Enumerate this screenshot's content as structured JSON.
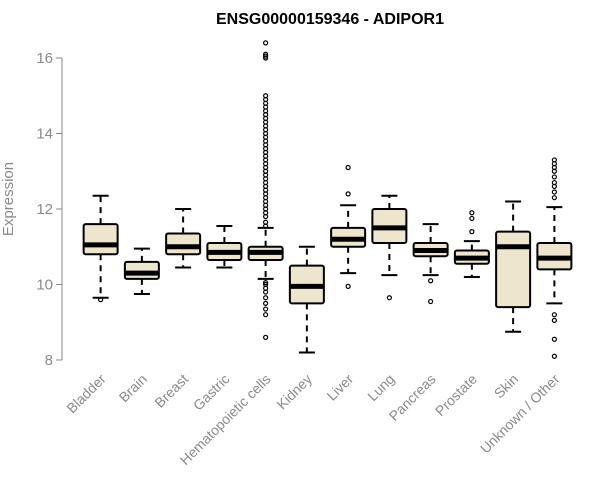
{
  "chart_data": {
    "type": "boxplot",
    "title": "ENSG00000159346 - ADIPOR1",
    "ylabel": "Expression",
    "xlabel": "",
    "ylim": [
      8,
      16.6
    ],
    "yticks": [
      8,
      10,
      12,
      14,
      16
    ],
    "grid": false,
    "legend": "none",
    "box_fill": "#ede6cc",
    "categories": [
      "Bladder",
      "Brain",
      "Breast",
      "Gastric",
      "Hematopoietic cells",
      "Kidney",
      "Liver",
      "Lung",
      "Pancreas",
      "Prostate",
      "Skin",
      "Unknown / Other"
    ],
    "boxes": [
      {
        "whisker_low": 9.65,
        "q1": 10.8,
        "median": 11.05,
        "q3": 11.6,
        "whisker_high": 12.35,
        "outliers": [
          9.6
        ]
      },
      {
        "whisker_low": 9.75,
        "q1": 10.15,
        "median": 10.3,
        "q3": 10.6,
        "whisker_high": 10.95,
        "outliers": []
      },
      {
        "whisker_low": 10.45,
        "q1": 10.8,
        "median": 11.0,
        "q3": 11.35,
        "whisker_high": 12.0,
        "outliers": []
      },
      {
        "whisker_low": 10.45,
        "q1": 10.65,
        "median": 10.85,
        "q3": 11.1,
        "whisker_high": 11.55,
        "outliers": []
      },
      {
        "whisker_low": 10.15,
        "q1": 10.65,
        "median": 10.85,
        "q3": 11.0,
        "whisker_high": 11.5,
        "outliers": [
          8.6,
          9.2,
          9.35,
          9.5,
          9.65,
          9.8,
          9.9,
          10.0,
          10.05,
          11.55,
          11.65,
          11.8,
          11.9,
          12.0,
          12.1,
          12.2,
          12.3,
          12.4,
          12.5,
          12.6,
          12.7,
          12.8,
          12.9,
          13.0,
          13.1,
          13.2,
          13.3,
          13.4,
          13.5,
          13.6,
          13.7,
          13.8,
          13.9,
          14.0,
          14.1,
          14.2,
          14.3,
          14.4,
          14.5,
          14.6,
          14.7,
          14.8,
          14.9,
          15.0,
          16.0,
          16.05,
          16.1,
          16.4
        ]
      },
      {
        "whisker_low": 8.2,
        "q1": 9.5,
        "median": 9.95,
        "q3": 10.5,
        "whisker_high": 11.0,
        "outliers": []
      },
      {
        "whisker_low": 10.3,
        "q1": 11.0,
        "median": 11.2,
        "q3": 11.5,
        "whisker_high": 12.1,
        "outliers": [
          9.95,
          12.4,
          13.1
        ]
      },
      {
        "whisker_low": 10.25,
        "q1": 11.1,
        "median": 11.5,
        "q3": 12.0,
        "whisker_high": 12.35,
        "outliers": [
          9.65
        ]
      },
      {
        "whisker_low": 10.25,
        "q1": 10.75,
        "median": 10.9,
        "q3": 11.1,
        "whisker_high": 11.6,
        "outliers": [
          9.55,
          10.1
        ]
      },
      {
        "whisker_low": 10.2,
        "q1": 10.55,
        "median": 10.7,
        "q3": 10.9,
        "whisker_high": 11.15,
        "outliers": [
          11.4,
          11.75,
          11.9
        ]
      },
      {
        "whisker_low": 8.75,
        "q1": 9.4,
        "median": 11.0,
        "q3": 11.4,
        "whisker_high": 12.2,
        "outliers": []
      },
      {
        "whisker_low": 9.5,
        "q1": 10.4,
        "median": 10.7,
        "q3": 11.1,
        "whisker_high": 12.05,
        "outliers": [
          8.1,
          8.55,
          9.05,
          9.2,
          12.3,
          12.45,
          12.6,
          12.7,
          12.85,
          13.0,
          13.1,
          13.2,
          13.3
        ]
      }
    ]
  }
}
